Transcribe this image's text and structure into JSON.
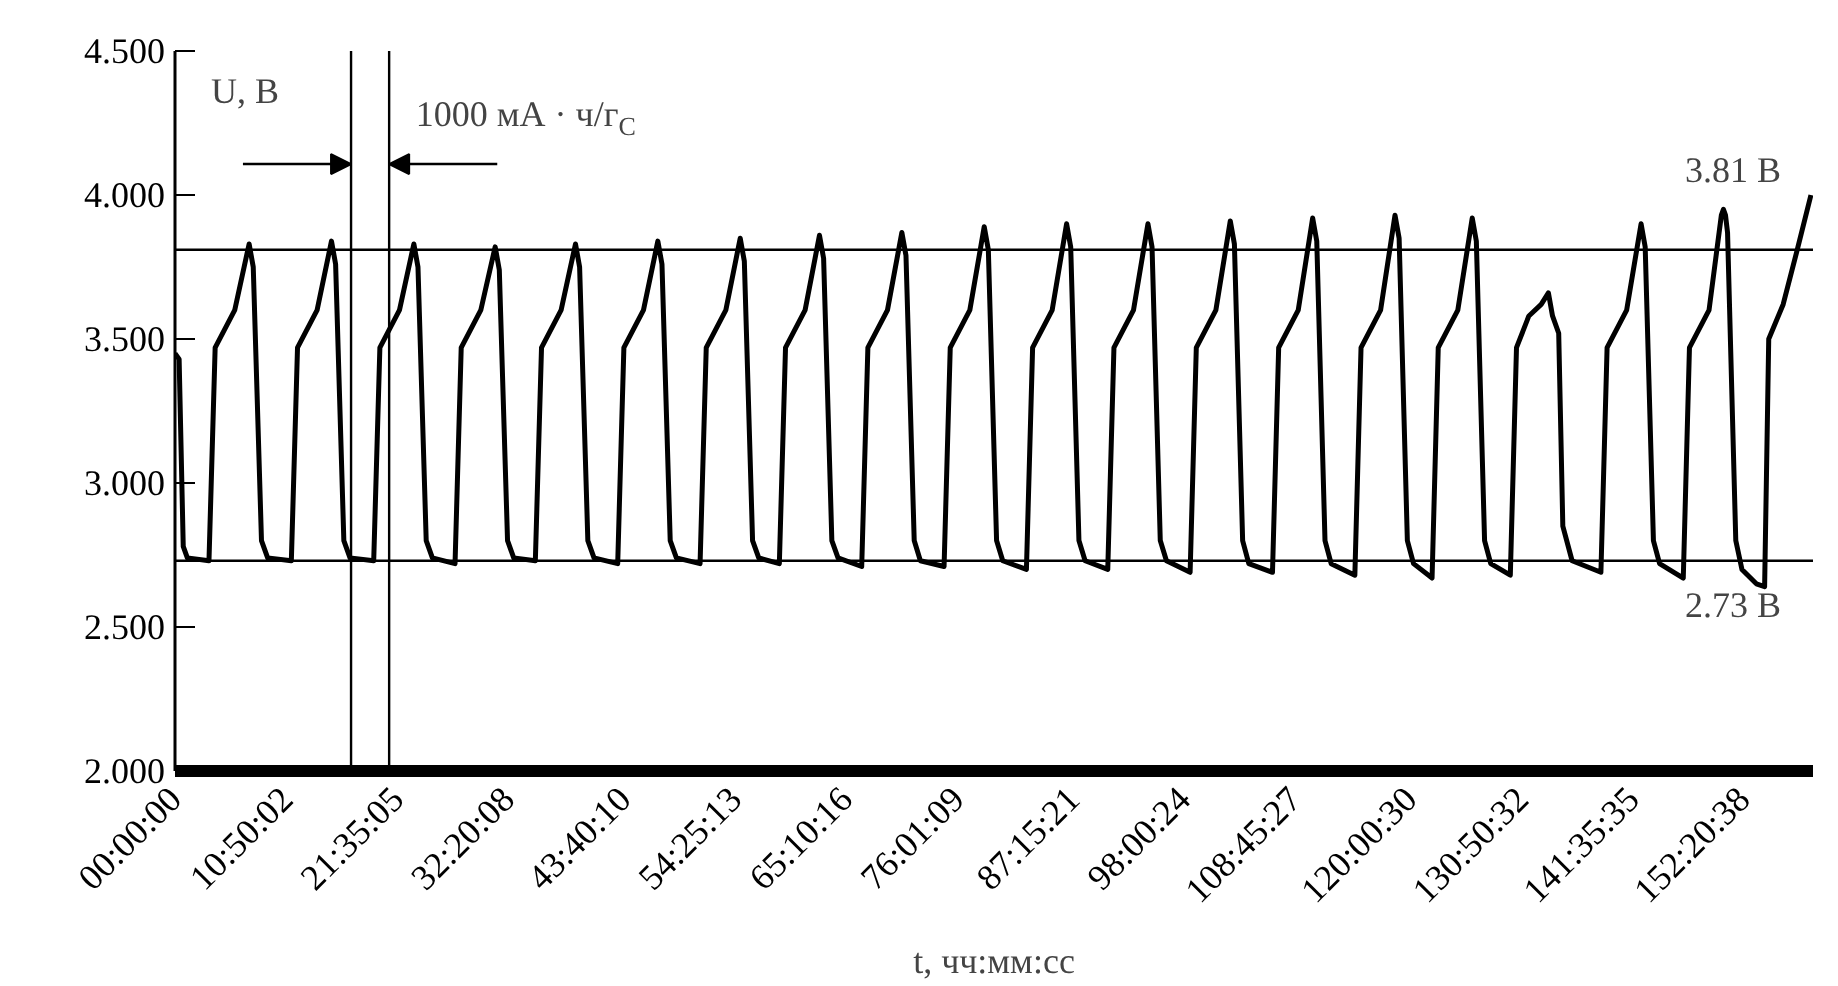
{
  "chart_data": {
    "type": "line",
    "xlabel": "t, чч:мм:сс",
    "ylabel": "U, В",
    "annotations": [
      "1000 мА · ч/г$_{C}$"
    ],
    "xlim": [
      0,
      159.1
    ],
    "ylim": [
      2.0,
      4.5
    ],
    "xticks": [
      {
        "value": 0,
        "label": "00:00:00"
      },
      {
        "value": 10.83389,
        "label": "10:50:02"
      },
      {
        "value": 21.58472,
        "label": "21:35:05"
      },
      {
        "value": 32.33556,
        "label": "32:20:08"
      },
      {
        "value": 43.66944,
        "label": "43:40:10"
      },
      {
        "value": 54.42028,
        "label": "54:25:13"
      },
      {
        "value": 65.17111,
        "label": "65:10:16"
      },
      {
        "value": 76.01917,
        "label": "76:01:09"
      },
      {
        "value": 87.25583,
        "label": "87:15:21"
      },
      {
        "value": 98.00667,
        "label": "98:00:24"
      },
      {
        "value": 108.7575,
        "label": "108:45:27"
      },
      {
        "value": 120.00833,
        "label": "120:00:30"
      },
      {
        "value": 130.84222,
        "label": "130:50:32"
      },
      {
        "value": 141.59306,
        "label": "141:35:35"
      },
      {
        "value": 152.34389,
        "label": "152:20:38"
      }
    ],
    "yticks": [
      {
        "value": 2.0,
        "label": "2.000"
      },
      {
        "value": 2.5,
        "label": "2.500"
      },
      {
        "value": 3.0,
        "label": "3.000"
      },
      {
        "value": 3.5,
        "label": "3.500"
      },
      {
        "value": 4.0,
        "label": "4.000"
      },
      {
        "value": 4.5,
        "label": "4.500"
      }
    ],
    "line_style": "solid",
    "ref_lines": [
      {
        "axis": "y",
        "value": 3.81,
        "label": "3.81 В"
      },
      {
        "axis": "y",
        "value": 2.73,
        "label": "2.73 В"
      },
      {
        "axis": "x",
        "value": 17.1,
        "label": null
      },
      {
        "axis": "x",
        "value": 20.8,
        "label": null
      }
    ],
    "series": [
      {
        "color": "#000000",
        "x": [
          0,
          0.4,
          0.8,
          1.2,
          3.3,
          3.9,
          5.8,
          7.2,
          7.6,
          8.4,
          9.0,
          11.3,
          11.9,
          13.8,
          15.2,
          15.6,
          16.4,
          17.0,
          19.3,
          19.9,
          21.8,
          23.2,
          23.6,
          24.4,
          25.0,
          27.2,
          27.8,
          29.7,
          31.1,
          31.5,
          32.3,
          32.9,
          35.0,
          35.6,
          37.5,
          38.9,
          39.3,
          40.1,
          40.7,
          43.0,
          43.6,
          45.5,
          46.9,
          47.3,
          48.1,
          48.7,
          51.0,
          51.6,
          53.5,
          54.9,
          55.3,
          56.1,
          56.7,
          58.7,
          59.3,
          61.2,
          62.6,
          63.0,
          63.8,
          64.4,
          66.7,
          67.3,
          69.2,
          70.6,
          71.0,
          71.8,
          72.4,
          74.7,
          75.3,
          77.2,
          78.6,
          79.0,
          79.8,
          80.4,
          82.7,
          83.3,
          85.2,
          86.6,
          87.0,
          87.8,
          88.4,
          90.6,
          91.2,
          93.1,
          94.5,
          94.9,
          95.7,
          96.3,
          98.6,
          99.2,
          101.1,
          102.5,
          102.9,
          103.7,
          104.3,
          106.6,
          107.2,
          109.1,
          110.5,
          110.9,
          111.7,
          112.3,
          114.6,
          115.2,
          117.1,
          118.5,
          118.9,
          119.7,
          120.3,
          122.1,
          122.7,
          124.6,
          126.0,
          126.4,
          127.2,
          127.8,
          129.7,
          130.3,
          131.5,
          132.7,
          133.4,
          133.8,
          134.4,
          134.8,
          135.7,
          138.5,
          139.1,
          141.0,
          142.4,
          142.8,
          143.6,
          144.2,
          146.5,
          147.1,
          149.0,
          150.2,
          150.4,
          150.6,
          150.8,
          151.6,
          152.2,
          153.6,
          154.4,
          154.8,
          156.2,
          157.5,
          158.9
        ],
        "values": [
          3.45,
          3.43,
          2.78,
          2.74,
          2.73,
          3.47,
          3.6,
          3.83,
          3.75,
          2.8,
          2.74,
          2.73,
          3.47,
          3.6,
          3.84,
          3.76,
          2.8,
          2.74,
          2.73,
          3.47,
          3.6,
          3.83,
          3.75,
          2.8,
          2.74,
          2.72,
          3.47,
          3.6,
          3.82,
          3.74,
          2.8,
          2.74,
          2.73,
          3.47,
          3.6,
          3.83,
          3.75,
          2.8,
          2.74,
          2.72,
          3.47,
          3.6,
          3.84,
          3.76,
          2.8,
          2.74,
          2.72,
          3.47,
          3.6,
          3.85,
          3.77,
          2.8,
          2.74,
          2.72,
          3.47,
          3.6,
          3.86,
          3.78,
          2.8,
          2.74,
          2.71,
          3.47,
          3.6,
          3.87,
          3.79,
          2.8,
          2.73,
          2.71,
          3.47,
          3.6,
          3.89,
          3.81,
          2.8,
          2.73,
          2.7,
          3.47,
          3.6,
          3.9,
          3.82,
          2.8,
          2.73,
          2.7,
          3.47,
          3.6,
          3.9,
          3.82,
          2.8,
          2.73,
          2.69,
          3.47,
          3.6,
          3.91,
          3.83,
          2.8,
          2.72,
          2.69,
          3.47,
          3.6,
          3.92,
          3.84,
          2.8,
          2.72,
          2.68,
          3.47,
          3.6,
          3.93,
          3.85,
          2.8,
          2.72,
          2.67,
          3.47,
          3.6,
          3.92,
          3.84,
          2.8,
          2.72,
          2.68,
          3.47,
          3.58,
          3.62,
          3.66,
          3.58,
          3.52,
          2.85,
          2.73,
          2.69,
          3.47,
          3.6,
          3.9,
          3.82,
          2.8,
          2.72,
          2.67,
          3.47,
          3.6,
          3.93,
          3.95,
          3.93,
          3.87,
          2.8,
          2.7,
          2.65,
          2.64,
          3.5,
          3.62,
          3.8,
          4.0
        ]
      }
    ]
  }
}
